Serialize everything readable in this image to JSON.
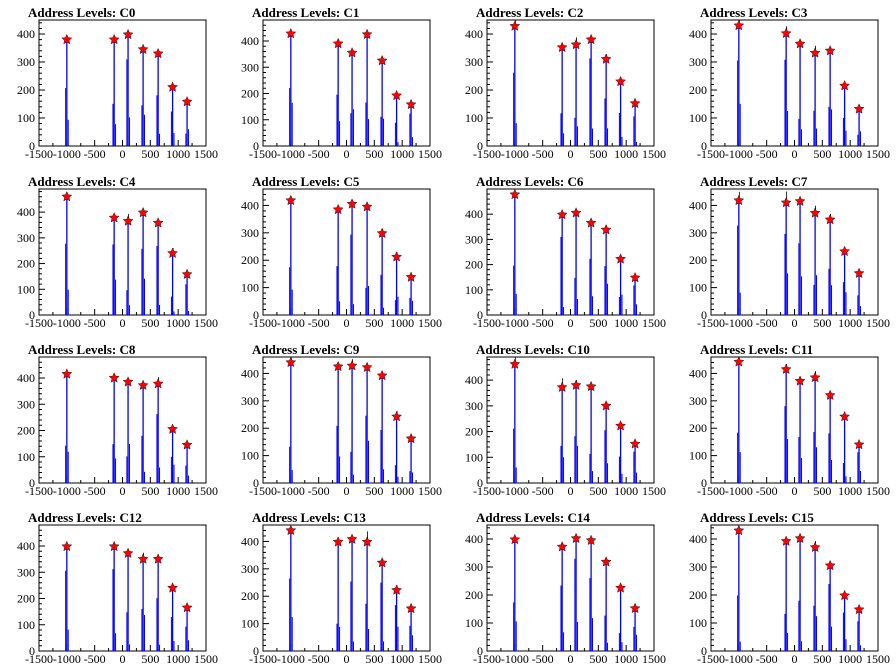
{
  "figure": {
    "background": "#ffffff",
    "line_color": "#0000ff",
    "marker_color": "#ff0000",
    "marker": "star"
  },
  "chart_data": [
    {
      "type": "bar",
      "title": "Address Levels: C0",
      "xlim": [
        -1500,
        1500
      ],
      "ylim": [
        0,
        450
      ],
      "yticks": [
        0,
        100,
        200,
        300,
        400
      ],
      "xticks": [
        -1500,
        -1000,
        -500,
        0,
        500,
        1000,
        1500
      ],
      "tick_labels": [
        "-1500",
        "-1000",
        "-500",
        "0",
        "500",
        "1000",
        "1500"
      ],
      "ytick_labels": [
        "0",
        "100",
        "200",
        "300",
        "400"
      ],
      "peaks": [
        {
          "x": -1000,
          "y": 380
        },
        {
          "x": -150,
          "y": 380
        },
        {
          "x": 100,
          "y": 398
        },
        {
          "x": 370,
          "y": 345
        },
        {
          "x": 640,
          "y": 330
        },
        {
          "x": 900,
          "y": 210
        },
        {
          "x": 1160,
          "y": 158
        }
      ]
    },
    {
      "type": "bar",
      "title": "Address Levels: C1",
      "xlim": [
        -1500,
        1500
      ],
      "ylim": [
        0,
        480
      ],
      "yticks": [
        0,
        100,
        200,
        300,
        400
      ],
      "xticks": [
        -1500,
        -1000,
        -500,
        0,
        500,
        1000,
        1500
      ],
      "tick_labels": [
        "-1500",
        "-1000",
        "-500",
        "0",
        "500",
        "1000",
        "1500"
      ],
      "ytick_labels": [
        "0",
        "100",
        "200",
        "300",
        "400"
      ],
      "peaks": [
        {
          "x": -1000,
          "y": 428
        },
        {
          "x": -150,
          "y": 390
        },
        {
          "x": 100,
          "y": 355
        },
        {
          "x": 370,
          "y": 425
        },
        {
          "x": 640,
          "y": 325
        },
        {
          "x": 900,
          "y": 192
        },
        {
          "x": 1160,
          "y": 158
        }
      ]
    },
    {
      "type": "bar",
      "title": "Address Levels: C2",
      "xlim": [
        -1500,
        1500
      ],
      "ylim": [
        0,
        450
      ],
      "yticks": [
        0,
        100,
        200,
        300,
        400
      ],
      "xticks": [
        -1500,
        -1000,
        -500,
        0,
        500,
        1000,
        1500
      ],
      "tick_labels": [
        "-1500",
        "-1000",
        "-500",
        "0",
        "500",
        "1000",
        "1500"
      ],
      "ytick_labels": [
        "0",
        "100",
        "200",
        "300",
        "400"
      ],
      "peaks": [
        {
          "x": -1000,
          "y": 428
        },
        {
          "x": -150,
          "y": 352
        },
        {
          "x": 100,
          "y": 362
        },
        {
          "x": 370,
          "y": 380
        },
        {
          "x": 640,
          "y": 310
        },
        {
          "x": 900,
          "y": 230
        },
        {
          "x": 1160,
          "y": 152
        }
      ]
    },
    {
      "type": "bar",
      "title": "Address Levels: C3",
      "xlim": [
        -1500,
        1500
      ],
      "ylim": [
        0,
        450
      ],
      "yticks": [
        0,
        100,
        200,
        300,
        400
      ],
      "xticks": [
        -1500,
        -1000,
        -500,
        0,
        500,
        1000,
        1500
      ],
      "tick_labels": [
        "-1500",
        "-1000",
        "-500",
        "0",
        "500",
        "1000",
        "1500"
      ],
      "ytick_labels": [
        "0",
        "100",
        "200",
        "300",
        "400"
      ],
      "peaks": [
        {
          "x": -1000,
          "y": 430
        },
        {
          "x": -150,
          "y": 402
        },
        {
          "x": 100,
          "y": 365
        },
        {
          "x": 370,
          "y": 332
        },
        {
          "x": 640,
          "y": 340
        },
        {
          "x": 900,
          "y": 215
        },
        {
          "x": 1160,
          "y": 132
        }
      ]
    },
    {
      "type": "bar",
      "title": "Address Levels: C4",
      "xlim": [
        -1500,
        1500
      ],
      "ylim": [
        0,
        490
      ],
      "yticks": [
        0,
        100,
        200,
        300,
        400
      ],
      "xticks": [
        -1500,
        -1000,
        -500,
        0,
        500,
        1000,
        1500
      ],
      "tick_labels": [
        "-1500",
        "-1000",
        "-500",
        "0",
        "500",
        "1000",
        "1500"
      ],
      "ytick_labels": [
        "0",
        "100",
        "200",
        "300",
        "400"
      ],
      "peaks": [
        {
          "x": -1000,
          "y": 460
        },
        {
          "x": -150,
          "y": 378
        },
        {
          "x": 100,
          "y": 365
        },
        {
          "x": 370,
          "y": 398
        },
        {
          "x": 640,
          "y": 358
        },
        {
          "x": 900,
          "y": 240
        },
        {
          "x": 1160,
          "y": 158
        }
      ]
    },
    {
      "type": "bar",
      "title": "Address Levels: C5",
      "xlim": [
        -1500,
        1500
      ],
      "ylim": [
        0,
        460
      ],
      "yticks": [
        0,
        100,
        200,
        300,
        400
      ],
      "xticks": [
        -1500,
        -1000,
        -500,
        0,
        500,
        1000,
        1500
      ],
      "tick_labels": [
        "-1500",
        "-1000",
        "-500",
        "0",
        "500",
        "1000",
        "1500"
      ],
      "ytick_labels": [
        "0",
        "100",
        "200",
        "300",
        "400"
      ],
      "peaks": [
        {
          "x": -1000,
          "y": 418
        },
        {
          "x": -150,
          "y": 385
        },
        {
          "x": 100,
          "y": 405
        },
        {
          "x": 370,
          "y": 395
        },
        {
          "x": 640,
          "y": 298
        },
        {
          "x": 900,
          "y": 212
        },
        {
          "x": 1160,
          "y": 138
        }
      ]
    },
    {
      "type": "bar",
      "title": "Address Levels: C6",
      "xlim": [
        -1500,
        1500
      ],
      "ylim": [
        0,
        500
      ],
      "yticks": [
        0,
        100,
        200,
        300,
        400
      ],
      "xticks": [
        -1500,
        -1000,
        -500,
        0,
        500,
        1000,
        1500
      ],
      "tick_labels": [
        "-1500",
        "-1000",
        "-500",
        "0",
        "500",
        "1000",
        "1500"
      ],
      "ytick_labels": [
        "0",
        "100",
        "200",
        "300",
        "400"
      ],
      "peaks": [
        {
          "x": -1000,
          "y": 478
        },
        {
          "x": -150,
          "y": 398
        },
        {
          "x": 100,
          "y": 405
        },
        {
          "x": 370,
          "y": 365
        },
        {
          "x": 640,
          "y": 338
        },
        {
          "x": 900,
          "y": 222
        },
        {
          "x": 1160,
          "y": 148
        }
      ]
    },
    {
      "type": "bar",
      "title": "Address Levels: C7",
      "xlim": [
        -1500,
        1500
      ],
      "ylim": [
        0,
        460
      ],
      "yticks": [
        0,
        100,
        200,
        300,
        400
      ],
      "xticks": [
        -1500,
        -1000,
        -500,
        0,
        500,
        1000,
        1500
      ],
      "tick_labels": [
        "-1500",
        "-1000",
        "-500",
        "0",
        "500",
        "1000",
        "1500"
      ],
      "ytick_labels": [
        "0",
        "100",
        "200",
        "300",
        "400"
      ],
      "peaks": [
        {
          "x": -1000,
          "y": 418
        },
        {
          "x": -150,
          "y": 410
        },
        {
          "x": 100,
          "y": 415
        },
        {
          "x": 370,
          "y": 372
        },
        {
          "x": 640,
          "y": 348
        },
        {
          "x": 900,
          "y": 232
        },
        {
          "x": 1160,
          "y": 152
        }
      ]
    },
    {
      "type": "bar",
      "title": "Address Levels: C8",
      "xlim": [
        -1500,
        1500
      ],
      "ylim": [
        0,
        480
      ],
      "yticks": [
        0,
        100,
        200,
        300,
        400
      ],
      "xticks": [
        -1500,
        -1000,
        -500,
        0,
        500,
        1000,
        1500
      ],
      "tick_labels": [
        "-1500",
        "-1000",
        "-500",
        "0",
        "500",
        "1000",
        "1500"
      ],
      "ytick_labels": [
        "0",
        "100",
        "200",
        "300",
        "400"
      ],
      "peaks": [
        {
          "x": -1000,
          "y": 415
        },
        {
          "x": -150,
          "y": 400
        },
        {
          "x": 100,
          "y": 385
        },
        {
          "x": 370,
          "y": 372
        },
        {
          "x": 640,
          "y": 378
        },
        {
          "x": 900,
          "y": 205
        },
        {
          "x": 1160,
          "y": 145
        }
      ]
    },
    {
      "type": "bar",
      "title": "Address Levels: C9",
      "xlim": [
        -1500,
        1500
      ],
      "ylim": [
        0,
        460
      ],
      "yticks": [
        0,
        100,
        200,
        300,
        400
      ],
      "xticks": [
        -1500,
        -1000,
        -500,
        0,
        500,
        1000,
        1500
      ],
      "tick_labels": [
        "-1500",
        "-1000",
        "-500",
        "0",
        "500",
        "1000",
        "1500"
      ],
      "ytick_labels": [
        "0",
        "100",
        "200",
        "300",
        "400"
      ],
      "peaks": [
        {
          "x": -1000,
          "y": 440
        },
        {
          "x": -150,
          "y": 425
        },
        {
          "x": 100,
          "y": 428
        },
        {
          "x": 370,
          "y": 422
        },
        {
          "x": 640,
          "y": 392
        },
        {
          "x": 900,
          "y": 242
        },
        {
          "x": 1160,
          "y": 162
        }
      ]
    },
    {
      "type": "bar",
      "title": "Address Levels: C10",
      "xlim": [
        -1500,
        1500
      ],
      "ylim": [
        0,
        490
      ],
      "yticks": [
        0,
        100,
        200,
        300,
        400
      ],
      "xticks": [
        -1500,
        -1000,
        -500,
        0,
        500,
        1000,
        1500
      ],
      "tick_labels": [
        "-1500",
        "-1000",
        "-500",
        "0",
        "500",
        "1000",
        "1500"
      ],
      "ytick_labels": [
        "0",
        "100",
        "200",
        "300",
        "400"
      ],
      "peaks": [
        {
          "x": -1000,
          "y": 462
        },
        {
          "x": -150,
          "y": 372
        },
        {
          "x": 100,
          "y": 380
        },
        {
          "x": 370,
          "y": 375
        },
        {
          "x": 640,
          "y": 300
        },
        {
          "x": 900,
          "y": 222
        },
        {
          "x": 1160,
          "y": 152
        }
      ]
    },
    {
      "type": "bar",
      "title": "Address Levels: C11",
      "xlim": [
        -1500,
        1500
      ],
      "ylim": [
        0,
        460
      ],
      "yticks": [
        0,
        100,
        200,
        300,
        400
      ],
      "xticks": [
        -1500,
        -1000,
        -500,
        0,
        500,
        1000,
        1500
      ],
      "tick_labels": [
        "-1500",
        "-1000",
        "-500",
        "0",
        "500",
        "1000",
        "1500"
      ],
      "ytick_labels": [
        "0",
        "100",
        "200",
        "300",
        "400"
      ],
      "peaks": [
        {
          "x": -1000,
          "y": 442
        },
        {
          "x": -150,
          "y": 415
        },
        {
          "x": 100,
          "y": 372
        },
        {
          "x": 370,
          "y": 385
        },
        {
          "x": 640,
          "y": 320
        },
        {
          "x": 900,
          "y": 242
        },
        {
          "x": 1160,
          "y": 140
        }
      ]
    },
    {
      "type": "bar",
      "title": "Address Levels: C12",
      "xlim": [
        -1500,
        1500
      ],
      "ylim": [
        0,
        480
      ],
      "yticks": [
        0,
        100,
        200,
        300,
        400
      ],
      "xticks": [
        -1500,
        -1000,
        -500,
        0,
        500,
        1000,
        1500
      ],
      "tick_labels": [
        "-1500",
        "-1000",
        "-500",
        "0",
        "500",
        "1000",
        "1500"
      ],
      "ytick_labels": [
        "0",
        "100",
        "200",
        "300",
        "400"
      ],
      "peaks": [
        {
          "x": -1000,
          "y": 398
        },
        {
          "x": -150,
          "y": 398
        },
        {
          "x": 100,
          "y": 372
        },
        {
          "x": 370,
          "y": 350
        },
        {
          "x": 640,
          "y": 350
        },
        {
          "x": 900,
          "y": 240
        },
        {
          "x": 1160,
          "y": 165
        }
      ]
    },
    {
      "type": "bar",
      "title": "Address Levels: C13",
      "xlim": [
        -1500,
        1500
      ],
      "ylim": [
        0,
        460
      ],
      "yticks": [
        0,
        100,
        200,
        300,
        400
      ],
      "xticks": [
        -1500,
        -1000,
        -500,
        0,
        500,
        1000,
        1500
      ],
      "tick_labels": [
        "-1500",
        "-1000",
        "-500",
        "0",
        "500",
        "1000",
        "1500"
      ],
      "ytick_labels": [
        "0",
        "100",
        "200",
        "300",
        "400"
      ],
      "peaks": [
        {
          "x": -1000,
          "y": 440
        },
        {
          "x": -150,
          "y": 398
        },
        {
          "x": 100,
          "y": 408
        },
        {
          "x": 370,
          "y": 398
        },
        {
          "x": 640,
          "y": 322
        },
        {
          "x": 900,
          "y": 222
        },
        {
          "x": 1160,
          "y": 155
        }
      ]
    },
    {
      "type": "bar",
      "title": "Address Levels: C14",
      "xlim": [
        -1500,
        1500
      ],
      "ylim": [
        0,
        450
      ],
      "yticks": [
        0,
        100,
        200,
        300,
        400
      ],
      "xticks": [
        -1500,
        -1000,
        -500,
        0,
        500,
        1000,
        1500
      ],
      "tick_labels": [
        "-1500",
        "-1000",
        "-500",
        "0",
        "500",
        "1000",
        "1500"
      ],
      "ytick_labels": [
        "0",
        "100",
        "200",
        "300",
        "400"
      ],
      "peaks": [
        {
          "x": -1000,
          "y": 398
        },
        {
          "x": -150,
          "y": 372
        },
        {
          "x": 100,
          "y": 402
        },
        {
          "x": 370,
          "y": 395
        },
        {
          "x": 640,
          "y": 318
        },
        {
          "x": 900,
          "y": 225
        },
        {
          "x": 1160,
          "y": 152
        }
      ]
    },
    {
      "type": "bar",
      "title": "Address Levels: C15",
      "xlim": [
        -1500,
        1500
      ],
      "ylim": [
        0,
        450
      ],
      "yticks": [
        0,
        100,
        200,
        300,
        400
      ],
      "xticks": [
        -1500,
        -1000,
        -500,
        0,
        500,
        1000,
        1500
      ],
      "tick_labels": [
        "-1500",
        "-1000",
        "-500",
        "0",
        "500",
        "1000",
        "1500"
      ],
      "ytick_labels": [
        "0",
        "100",
        "200",
        "300",
        "400"
      ],
      "peaks": [
        {
          "x": -1000,
          "y": 430
        },
        {
          "x": -150,
          "y": 392
        },
        {
          "x": 100,
          "y": 402
        },
        {
          "x": 370,
          "y": 370
        },
        {
          "x": 640,
          "y": 305
        },
        {
          "x": 900,
          "y": 198
        },
        {
          "x": 1160,
          "y": 148
        }
      ]
    }
  ]
}
